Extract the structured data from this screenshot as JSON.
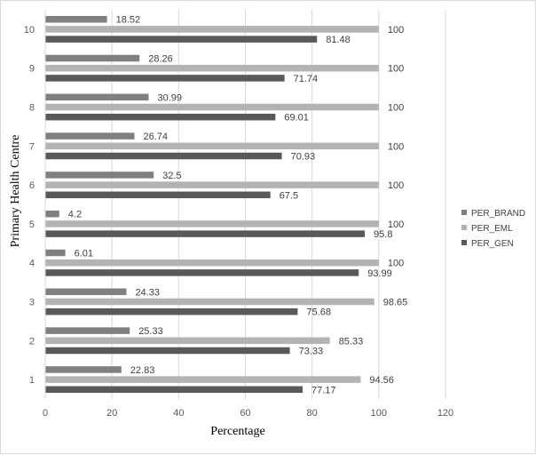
{
  "chart_data": {
    "type": "bar",
    "orientation": "horizontal",
    "title": "",
    "xlabel": "Percentage",
    "ylabel": "Primary Health Centre",
    "xlim": [
      0,
      120
    ],
    "xticks": [
      0,
      20,
      40,
      60,
      80,
      100,
      120
    ],
    "grid": true,
    "legend_position": "right",
    "categories": [
      "1",
      "2",
      "3",
      "4",
      "5",
      "6",
      "7",
      "8",
      "9",
      "10"
    ],
    "series": [
      {
        "name": "PER_BRAND",
        "color": "#808080",
        "values": [
          22.83,
          25.33,
          24.33,
          6.01,
          4.2,
          32.5,
          26.74,
          30.99,
          28.26,
          18.52
        ]
      },
      {
        "name": "PER_EML",
        "color": "#b3b3b3",
        "values": [
          94.56,
          85.33,
          98.65,
          100,
          100,
          100,
          100,
          100,
          100,
          100
        ]
      },
      {
        "name": "PER_GEN",
        "color": "#595959",
        "values": [
          77.17,
          73.33,
          75.68,
          93.99,
          95.8,
          67.5,
          70.93,
          69.01,
          71.74,
          81.48
        ]
      }
    ]
  }
}
